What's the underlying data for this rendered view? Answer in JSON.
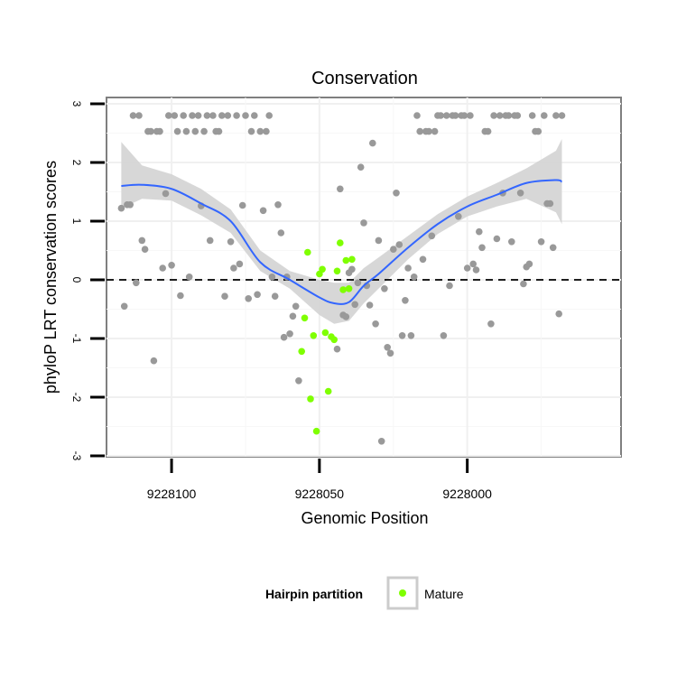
{
  "chart_data": {
    "type": "scatter",
    "title": "Conservation",
    "xlabel": "Genomic Position",
    "ylabel": "phyloP LRT conservation scores",
    "x_reversed": true,
    "xlim": [
      9228122,
      9227948
    ],
    "ylim": [
      -3,
      3
    ],
    "xticks": [
      9228100,
      9228050,
      9228000
    ],
    "xtick_labels": [
      "9228100",
      "9228050",
      "9228000"
    ],
    "yticks": [
      -3,
      -2,
      -1,
      0,
      1,
      2,
      3
    ],
    "ytick_labels": [
      "-3",
      "-2",
      "-1",
      "0",
      "1",
      "2",
      "3"
    ],
    "hline": 0,
    "grid": true,
    "legend": {
      "title": "Hairpin partition",
      "position": "bottom",
      "entries": [
        {
          "name": "Mature",
          "color": "#7FFF00"
        }
      ]
    },
    "colors": {
      "other": "#999999",
      "mature": "#7FFF00",
      "smooth_line": "#3366FF",
      "ribbon": "#D3D3D3"
    },
    "series": [
      {
        "name": "",
        "color": "#999999",
        "points": [
          [
            9228117,
            1.22
          ],
          [
            9228115,
            1.28
          ],
          [
            9228114,
            1.28
          ],
          [
            9228116,
            -0.45
          ],
          [
            9228113,
            2.8
          ],
          [
            9228111,
            2.8
          ],
          [
            9228112,
            -0.05
          ],
          [
            9228110,
            0.67
          ],
          [
            9228109,
            0.52
          ],
          [
            9228108,
            2.53
          ],
          [
            9228107,
            2.53
          ],
          [
            9228106,
            -1.38
          ],
          [
            9228105,
            2.53
          ],
          [
            9228104,
            2.53
          ],
          [
            9228103,
            0.2
          ],
          [
            9228102,
            1.47
          ],
          [
            9228101,
            2.8
          ],
          [
            9228100,
            0.25
          ],
          [
            9228099,
            2.8
          ],
          [
            9228098,
            2.53
          ],
          [
            9228097,
            -0.27
          ],
          [
            9228096,
            2.8
          ],
          [
            9228095,
            2.53
          ],
          [
            9228094,
            0.05
          ],
          [
            9228093,
            2.8
          ],
          [
            9228092,
            2.53
          ],
          [
            9228091,
            2.8
          ],
          [
            9228090,
            1.26
          ],
          [
            9228089,
            2.53
          ],
          [
            9228088,
            2.8
          ],
          [
            9228087,
            0.67
          ],
          [
            9228086,
            2.8
          ],
          [
            9228085,
            2.53
          ],
          [
            9228084,
            2.53
          ],
          [
            9228083,
            2.8
          ],
          [
            9228082,
            -0.28
          ],
          [
            9228081,
            2.8
          ],
          [
            9228080,
            0.65
          ],
          [
            9228079,
            0.2
          ],
          [
            9228078,
            2.8
          ],
          [
            9228077,
            0.27
          ],
          [
            9228076,
            1.27
          ],
          [
            9228075,
            2.8
          ],
          [
            9228074,
            -0.32
          ],
          [
            9228073,
            2.53
          ],
          [
            9228072,
            2.8
          ],
          [
            9228071,
            -0.25
          ],
          [
            9228070,
            2.53
          ],
          [
            9228069,
            1.18
          ],
          [
            9228068,
            2.53
          ],
          [
            9228067,
            2.8
          ],
          [
            9228066,
            0.05
          ],
          [
            9228065,
            -0.28
          ],
          [
            9228064,
            1.28
          ],
          [
            9228063,
            0.8
          ],
          [
            9228062,
            -0.98
          ],
          [
            9228061,
            0.05
          ],
          [
            9228060,
            -0.92
          ],
          [
            9228059,
            -0.62
          ],
          [
            9228058,
            -0.45
          ],
          [
            9228057,
            -1.72
          ],
          [
            9228044,
            -1.18
          ],
          [
            9228043,
            1.55
          ],
          [
            9228042,
            -0.6
          ],
          [
            9228041,
            -0.63
          ],
          [
            9228040,
            0.12
          ],
          [
            9228039,
            0.18
          ],
          [
            9228038,
            -0.42
          ],
          [
            9228037,
            -0.05
          ],
          [
            9228036,
            1.92
          ],
          [
            9228035,
            0.97
          ],
          [
            9228034,
            -0.1
          ],
          [
            9228033,
            -0.43
          ],
          [
            9228032,
            2.33
          ],
          [
            9228031,
            -0.75
          ],
          [
            9228030,
            0.67
          ],
          [
            9228029,
            -2.75
          ],
          [
            9228028,
            -0.15
          ],
          [
            9228027,
            -1.15
          ],
          [
            9228026,
            -1.25
          ],
          [
            9228025,
            0.52
          ],
          [
            9228024,
            1.48
          ],
          [
            9228023,
            0.6
          ],
          [
            9228022,
            -0.95
          ],
          [
            9228021,
            -0.35
          ],
          [
            9228020,
            0.2
          ],
          [
            9228019,
            -0.95
          ],
          [
            9228018,
            0.05
          ],
          [
            9228017,
            2.8
          ],
          [
            9228016,
            2.53
          ],
          [
            9228015,
            0.35
          ],
          [
            9228014,
            2.53
          ],
          [
            9228013,
            2.53
          ],
          [
            9228012,
            0.75
          ],
          [
            9228011,
            2.53
          ],
          [
            9228010,
            2.8
          ],
          [
            9228009,
            2.8
          ],
          [
            9228008,
            -0.95
          ],
          [
            9228007,
            2.8
          ],
          [
            9228006,
            -0.1
          ],
          [
            9228005,
            2.8
          ],
          [
            9228004,
            2.8
          ],
          [
            9228003,
            1.08
          ],
          [
            9228002,
            2.8
          ],
          [
            9228001,
            2.8
          ],
          [
            9228000,
            0.2
          ],
          [
            9227999,
            2.8
          ],
          [
            9227998,
            0.27
          ],
          [
            9227997,
            0.17
          ],
          [
            9227996,
            0.82
          ],
          [
            9227995,
            0.55
          ],
          [
            9227994,
            2.53
          ],
          [
            9227993,
            2.53
          ],
          [
            9227992,
            -0.75
          ],
          [
            9227991,
            2.8
          ],
          [
            9227990,
            0.7
          ],
          [
            9227989,
            2.8
          ],
          [
            9227988,
            1.48
          ],
          [
            9227987,
            2.8
          ],
          [
            9227986,
            2.8
          ],
          [
            9227985,
            0.65
          ],
          [
            9227984,
            2.8
          ],
          [
            9227983,
            2.8
          ],
          [
            9227982,
            1.48
          ],
          [
            9227981,
            -0.07
          ],
          [
            9227980,
            0.22
          ],
          [
            9227979,
            0.27
          ],
          [
            9227978,
            2.8
          ],
          [
            9227977,
            2.53
          ],
          [
            9227976,
            2.53
          ],
          [
            9227975,
            0.65
          ],
          [
            9227974,
            2.8
          ],
          [
            9227973,
            1.3
          ],
          [
            9227972,
            1.3
          ],
          [
            9227971,
            0.55
          ],
          [
            9227970,
            2.8
          ],
          [
            9227969,
            -0.58
          ],
          [
            9227968,
            2.8
          ]
        ]
      },
      {
        "name": "Mature",
        "color": "#7FFF00",
        "points": [
          [
            9228056,
            -1.22
          ],
          [
            9228055,
            -0.65
          ],
          [
            9228054,
            0.47
          ],
          [
            9228053,
            -2.03
          ],
          [
            9228052,
            -0.95
          ],
          [
            9228051,
            -2.58
          ],
          [
            9228050,
            0.1
          ],
          [
            9228049,
            0.18
          ],
          [
            9228048,
            -0.9
          ],
          [
            9228047,
            -1.9
          ],
          [
            9228046,
            -0.97
          ],
          [
            9228045,
            -1.02
          ],
          [
            9228044,
            0.15
          ],
          [
            9228043,
            0.63
          ],
          [
            9228042,
            -0.17
          ],
          [
            9228041,
            0.33
          ],
          [
            9228040,
            -0.15
          ],
          [
            9228039,
            0.35
          ]
        ]
      }
    ],
    "smooth": {
      "x": [
        9228117,
        9228110,
        9228100,
        9228090,
        9228080,
        9228070,
        9228060,
        9228050,
        9228045,
        9228040,
        9228035,
        9228030,
        9228020,
        9228010,
        9228000,
        9227990,
        9227980,
        9227970,
        9227968
      ],
      "y": [
        1.6,
        1.62,
        1.55,
        1.3,
        1.0,
        0.3,
        0.0,
        -0.3,
        -0.4,
        -0.38,
        -0.1,
        0.1,
        0.55,
        0.95,
        1.25,
        1.45,
        1.65,
        1.7,
        1.67
      ],
      "lower": [
        1.22,
        1.38,
        1.35,
        1.1,
        0.8,
        0.15,
        -0.15,
        -0.6,
        -0.75,
        -0.7,
        -0.4,
        -0.15,
        0.35,
        0.78,
        1.08,
        1.25,
        1.38,
        1.15,
        0.95
      ],
      "upper": [
        2.35,
        1.95,
        1.8,
        1.55,
        1.2,
        0.5,
        0.15,
        0.0,
        -0.05,
        -0.05,
        0.2,
        0.38,
        0.75,
        1.12,
        1.42,
        1.65,
        1.9,
        2.2,
        2.4
      ]
    }
  }
}
